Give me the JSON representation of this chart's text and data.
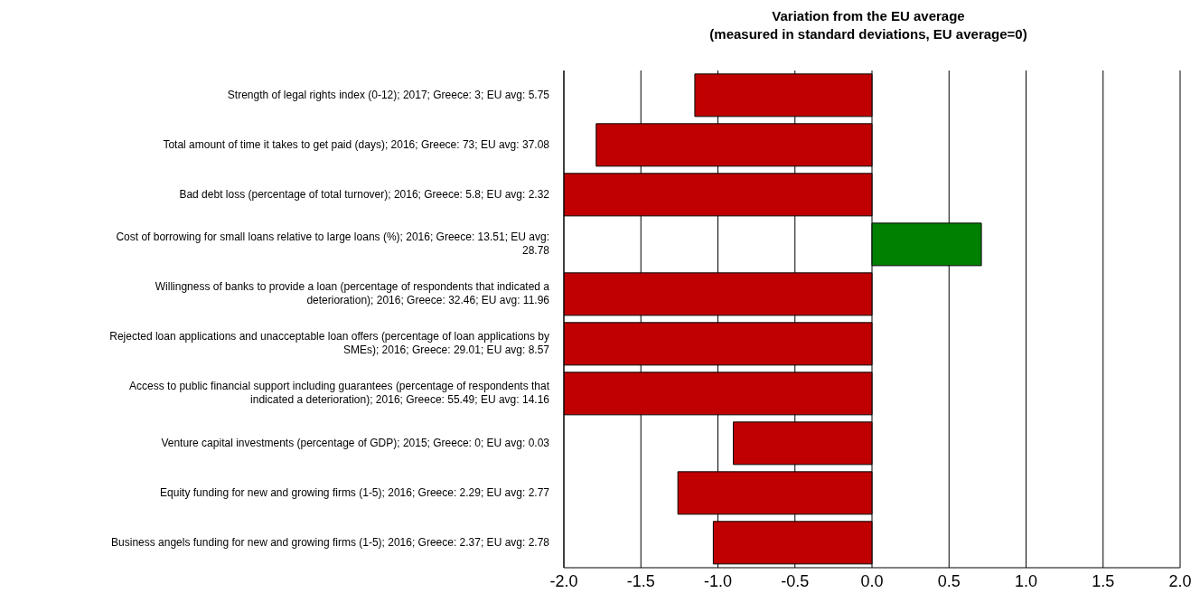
{
  "chart_data": {
    "type": "bar",
    "orientation": "horizontal",
    "title": "Variation from the EU average",
    "subtitle": "(measured in standard deviations, EU average=0)",
    "categories": [
      "Strength of legal rights index (0-12); 2017; Greece: 3; EU avg: 5.75",
      "Total amount of time it takes to get paid (days); 2016; Greece: 73; EU avg: 37.08",
      "Bad debt loss (percentage of total turnover); 2016; Greece: 5.8; EU avg: 2.32",
      "Cost of borrowing for small loans relative to large loans (%); 2016; Greece: 13.51; EU avg: 28.78",
      "Willingness of banks to provide a loan (percentage of respondents that indicated a deterioration); 2016; Greece: 32.46; EU avg: 11.96",
      "Rejected loan applications and unacceptable loan offers (percentage of loan applications by SMEs); 2016; Greece: 29.01; EU avg: 8.57",
      "Access to public financial support including guarantees (percentage of respondents that indicated a deterioration); 2016; Greece: 55.49; EU avg: 14.16",
      "Venture capital investments (percentage of GDP); 2015; Greece: 0; EU avg: 0.03",
      "Equity funding for new and growing firms (1-5); 2016; Greece: 2.29; EU avg: 2.77",
      "Business angels funding for new and growing firms (1-5); 2016; Greece: 2.37; EU avg: 2.78"
    ],
    "values": [
      -1.15,
      -1.79,
      -2.0,
      0.71,
      -2.0,
      -2.0,
      -2.0,
      -0.9,
      -1.26,
      -1.03
    ],
    "colors": [
      "#c00000",
      "#c00000",
      "#c00000",
      "#008000",
      "#c00000",
      "#c00000",
      "#c00000",
      "#c00000",
      "#c00000",
      "#c00000"
    ],
    "xlim": [
      -2,
      2
    ],
    "xticks": [
      {
        "value": -2,
        "label": "-2.0"
      },
      {
        "value": -1.5,
        "label": "-1.5"
      },
      {
        "value": -1,
        "label": "-1.0"
      },
      {
        "value": -0.5,
        "label": "-0.5"
      },
      {
        "value": 0,
        "label": "0.0"
      },
      {
        "value": 0.5,
        "label": "0.5"
      },
      {
        "value": 1,
        "label": "1.0"
      },
      {
        "value": 1.5,
        "label": "1.5"
      },
      {
        "value": 2,
        "label": "2.0"
      }
    ],
    "grid": "x"
  }
}
